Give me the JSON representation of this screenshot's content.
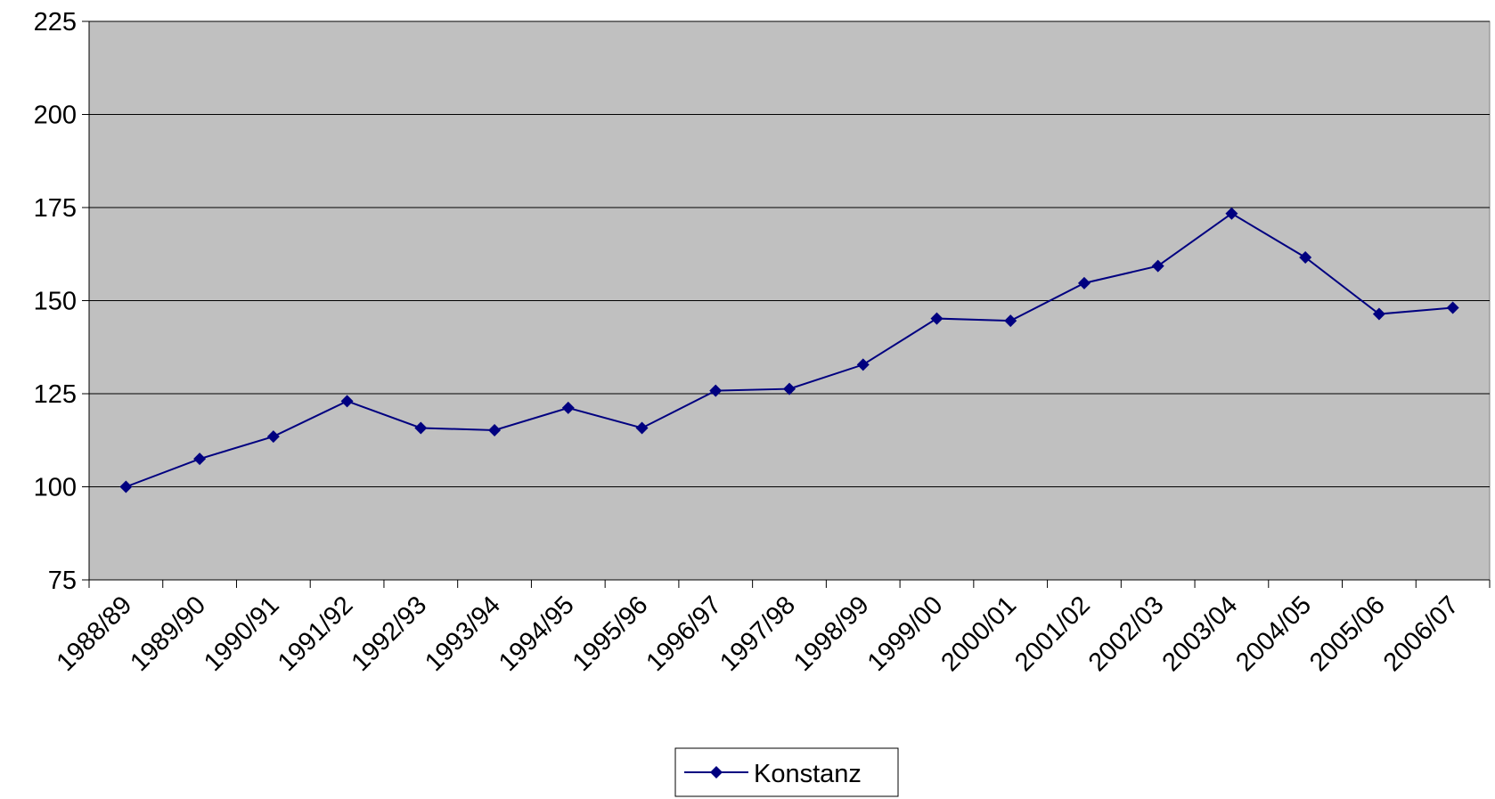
{
  "chart_data": {
    "type": "line",
    "categories": [
      "1988/89",
      "1989/90",
      "1990/91",
      "1991/92",
      "1992/93",
      "1993/94",
      "1994/95",
      "1995/96",
      "1996/97",
      "1997/98",
      "1998/99",
      "1999/00",
      "2000/01",
      "2001/02",
      "2002/03",
      "2003/04",
      "2004/05",
      "2005/06",
      "2006/07"
    ],
    "series": [
      {
        "name": "Konstanz",
        "color": "#000080",
        "values": [
          100,
          107.5,
          113.5,
          123,
          115.8,
          115.2,
          121.2,
          115.8,
          125.8,
          126.3,
          132.8,
          145.2,
          144.6,
          154.7,
          159.3,
          173.4,
          161.6,
          146.4,
          148.1
        ]
      }
    ],
    "ylim": [
      75,
      225
    ],
    "yticks": [
      75,
      100,
      125,
      150,
      175,
      200,
      225
    ],
    "grid": true,
    "legend": "bottom",
    "plot_background": "#c0c0c0"
  }
}
